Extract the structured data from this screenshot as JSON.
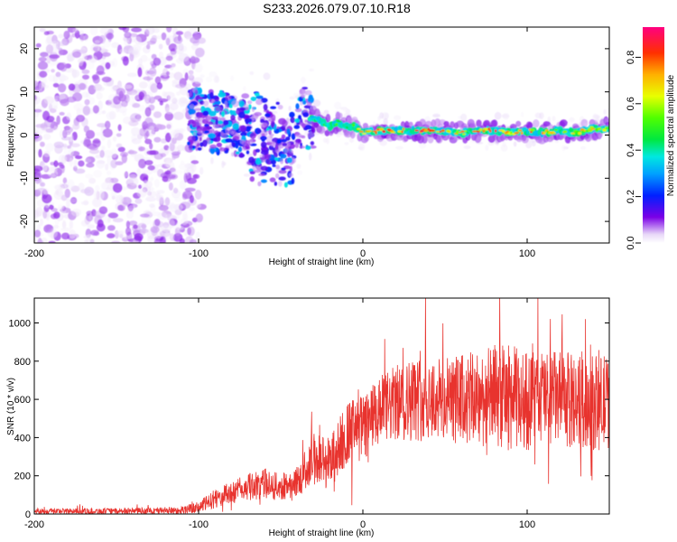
{
  "title": "S233.2026.079.07.10.R18",
  "chart_data": [
    {
      "type": "heatmap",
      "name": "spectrogram",
      "xlabel": "Height of straight line (km)",
      "ylabel": "Frequency (Hz)",
      "xlim": [
        -200,
        150
      ],
      "ylim": [
        -25,
        25
      ],
      "xticks": [
        -200,
        -100,
        0,
        100
      ],
      "xtick_labels": [
        "-200",
        "-100",
        "0",
        "100"
      ],
      "yticks": [
        -20,
        -10,
        0,
        10,
        20
      ],
      "ytick_labels": [
        "-20",
        "-10",
        "0",
        "10",
        "20"
      ],
      "colorbar": {
        "label": "Normalized spectral amplitude",
        "range": [
          0,
          0.93
        ],
        "ticks": [
          0.0,
          0.2,
          0.4,
          0.6,
          0.8
        ],
        "tick_labels": [
          "0.0",
          "0.2",
          "0.4",
          "0.6",
          "0.8"
        ]
      },
      "ridge": {
        "x": [
          -105,
          -95,
          -85,
          -75,
          -65,
          -55,
          -45,
          -35,
          -30,
          -25,
          -20,
          -15,
          -10,
          -5,
          0,
          10,
          20,
          30,
          40,
          50,
          60,
          70,
          80,
          90,
          100,
          110,
          120,
          130,
          140,
          150
        ],
        "frequency": [
          4,
          3,
          3,
          2,
          3,
          2,
          1,
          4,
          4,
          3,
          2,
          3,
          2,
          2,
          0.5,
          1,
          1,
          1,
          1,
          1,
          0.5,
          1,
          1,
          0.5,
          1,
          0.5,
          1,
          0.5,
          1.5,
          1.5
        ],
        "amplitude": [
          0.3,
          0.3,
          0.3,
          0.3,
          0.3,
          0.3,
          0.35,
          0.45,
          0.45,
          0.5,
          0.5,
          0.5,
          0.55,
          0.6,
          0.8,
          0.85,
          0.85,
          0.85,
          0.85,
          0.85,
          0.8,
          0.8,
          0.85,
          0.8,
          0.8,
          0.75,
          0.75,
          0.7,
          0.7,
          0.7
        ]
      }
    },
    {
      "type": "line",
      "name": "snr",
      "xlabel": "Height of straight line (km)",
      "ylabel": "SNR (10 * v/v)",
      "xlim": [
        -200,
        150
      ],
      "ylim": [
        0,
        1130
      ],
      "xticks": [
        -200,
        -100,
        0,
        100
      ],
      "xtick_labels": [
        "-200",
        "-100",
        "0",
        "100"
      ],
      "yticks": [
        0,
        200,
        400,
        600,
        800,
        1000
      ],
      "ytick_labels": [
        "0",
        "200",
        "400",
        "600",
        "800",
        "1000"
      ],
      "color": "#e8332e",
      "series": [
        {
          "name": "SNR",
          "x": [
            -200,
            -150,
            -110,
            -100,
            -90,
            -80,
            -70,
            -60,
            -50,
            -40,
            -30,
            -25,
            -20,
            -15,
            -10,
            -5,
            0,
            10,
            20,
            30,
            40,
            50,
            60,
            70,
            80,
            90,
            100,
            110,
            120,
            130,
            140,
            150
          ],
          "values": [
            15,
            15,
            20,
            35,
            80,
            110,
            140,
            160,
            140,
            170,
            290,
            280,
            270,
            340,
            420,
            440,
            450,
            530,
            580,
            600,
            610,
            590,
            600,
            600,
            620,
            610,
            590,
            620,
            600,
            590,
            580,
            590
          ],
          "spread": [
            15,
            15,
            20,
            30,
            50,
            60,
            70,
            80,
            70,
            80,
            140,
            150,
            140,
            160,
            170,
            170,
            170,
            190,
            200,
            220,
            230,
            230,
            240,
            250,
            270,
            280,
            260,
            250,
            250,
            250,
            250,
            250
          ]
        }
      ]
    }
  ]
}
